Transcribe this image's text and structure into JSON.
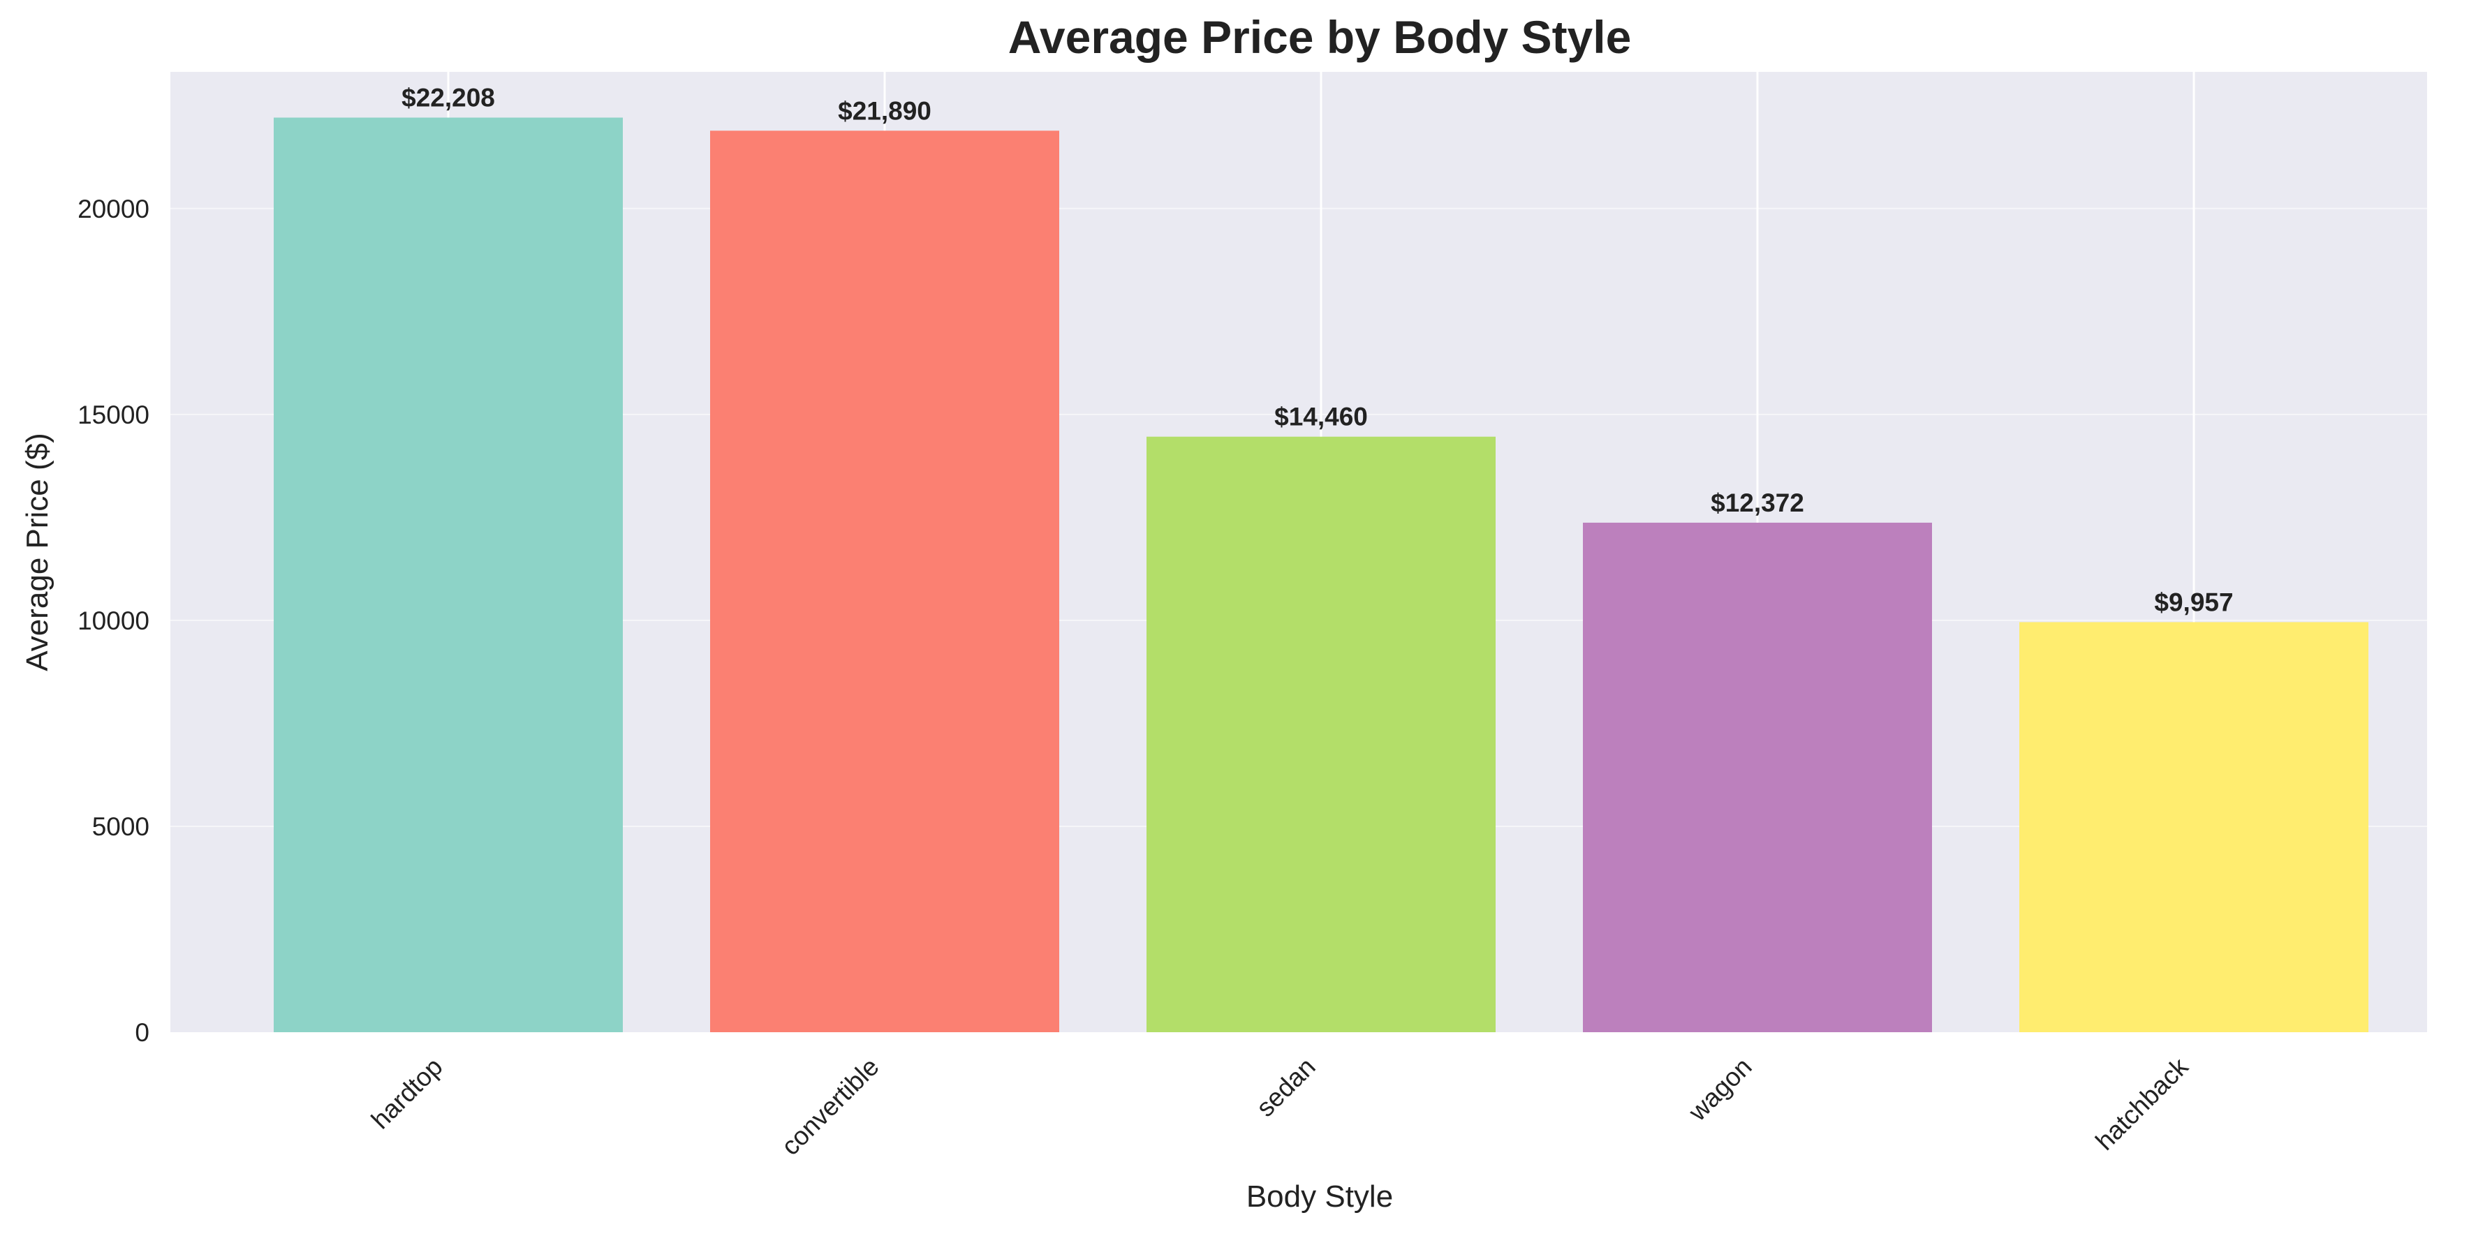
{
  "chart_data": {
    "type": "bar",
    "title": "Average Price by Body Style",
    "xlabel": "Body Style",
    "ylabel": "Average Price ($)",
    "categories": [
      "hardtop",
      "convertible",
      "sedan",
      "wagon",
      "hatchback"
    ],
    "values": [
      22208,
      21890,
      14460,
      12372,
      9957
    ],
    "data_labels": [
      "$22,208",
      "$21,890",
      "$14,460",
      "$12,372",
      "$9,957"
    ],
    "colors": [
      "#8dd3c7",
      "#fb8072",
      "#b3de69",
      "#bc80bd",
      "#ffed6f"
    ],
    "yticks": [
      0,
      5000,
      10000,
      15000,
      20000
    ],
    "ylim": [
      0,
      23318
    ],
    "grid": true,
    "legend": "none",
    "background_color": "#eaeaf2",
    "grid_color": "#ffffff"
  }
}
